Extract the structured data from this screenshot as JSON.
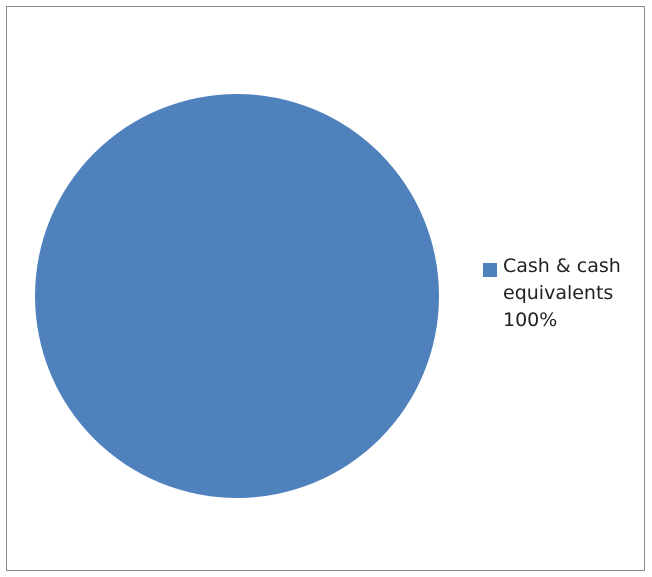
{
  "chart_data": {
    "type": "pie",
    "title": "",
    "slices": [
      {
        "label": "Cash & cash equivalents",
        "percent_label": "100%",
        "value": 100,
        "color": "#4f81bd"
      }
    ],
    "legend_position": "right",
    "border": true
  }
}
